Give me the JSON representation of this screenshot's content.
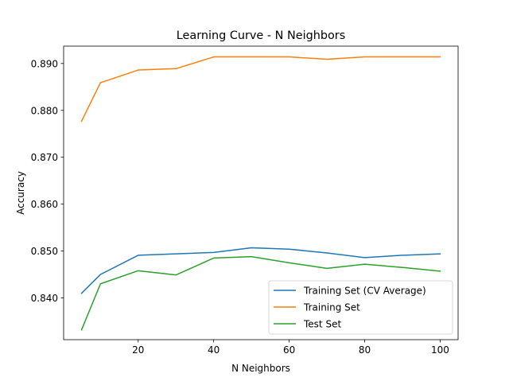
{
  "chart_data": {
    "type": "line",
    "title": "Learning Curve - N Neighbors",
    "xlabel": "N Neighbors",
    "ylabel": "Accuracy",
    "xlim": [
      0.25,
      104.75
    ],
    "ylim": [
      0.8311,
      0.8937
    ],
    "xticks": [
      20,
      40,
      60,
      80,
      100
    ],
    "yticks": [
      0.84,
      0.85,
      0.86,
      0.87,
      0.88,
      0.89
    ],
    "grid": false,
    "legend_position": "lower-right",
    "x": [
      5,
      10,
      20,
      30,
      40,
      50,
      60,
      70,
      80,
      90,
      100
    ],
    "series": [
      {
        "name": "Training Set (CV Average)",
        "color": "#1f77b4",
        "values": [
          0.841,
          0.845,
          0.8491,
          0.8494,
          0.8497,
          0.8507,
          0.8504,
          0.8496,
          0.8486,
          0.8491,
          0.8494
        ]
      },
      {
        "name": "Training Set",
        "color": "#ff7f0e",
        "values": [
          0.8777,
          0.8859,
          0.8886,
          0.8889,
          0.8914,
          0.8914,
          0.8914,
          0.8909,
          0.8914,
          0.8914,
          0.8914
        ]
      },
      {
        "name": "Test Set",
        "color": "#2ca02c",
        "values": [
          0.8332,
          0.843,
          0.8458,
          0.8449,
          0.8485,
          0.8488,
          0.8475,
          0.8463,
          0.8472,
          0.8465,
          0.8457
        ]
      }
    ]
  }
}
